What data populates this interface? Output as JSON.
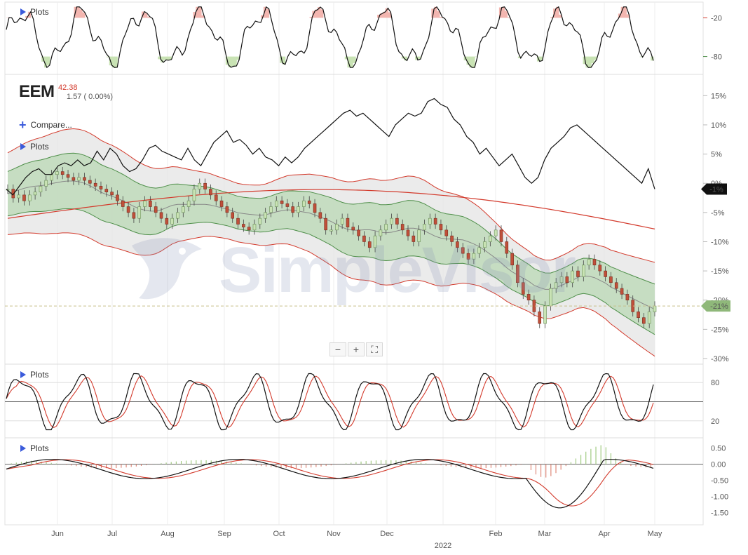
{
  "symbol": "EEM",
  "price": "42.38",
  "change": "1.57 ( 0.00%)",
  "compare_label": "Compare...",
  "plots_label": "Plots",
  "watermark": "SimpleVisor",
  "zoom": {
    "minus": "−",
    "plus": "+",
    "fit": "⛶"
  },
  "icons": {
    "plots": "triangle-right-icon",
    "compare": "plus-icon",
    "zoom_out": "minus-icon",
    "zoom_in": "plus-icon",
    "fit": "fit-screen-icon",
    "logo": "eagle-logo-icon"
  },
  "colors": {
    "up": "#c9e3b4",
    "down": "#c0503a",
    "band_fill": "#b7d7b0",
    "outer_fill": "#e6e6e6",
    "outer_line": "#d33a2c",
    "inner_line": "#4f8f4a",
    "ma200": "#d33a2c",
    "signal": "#d33a2c",
    "overbought": "#f3b6b0",
    "oversold": "#c9e3b4",
    "accent": "#3b5bdb"
  },
  "months": [
    "Jun",
    "Jul",
    "Aug",
    "Sep",
    "Oct",
    "Nov",
    "Dec",
    "2022",
    "Feb",
    "Mar",
    "Apr",
    "May"
  ],
  "chart_data": [
    {
      "panel": "top-oscillator",
      "type": "line",
      "y_ticks": [
        "-20",
        "-80"
      ],
      "ylim": [
        -100,
        0
      ],
      "overbought": -20,
      "oversold": -80
    },
    {
      "panel": "price",
      "type": "candlestick",
      "y_ticks": [
        "15%",
        "10%",
        "5%",
        "0%",
        "-5%",
        "-10%",
        "-15%",
        "-20%",
        "-25%",
        "-30%"
      ],
      "ylim": [
        -30,
        16
      ],
      "last_compare_label": "-1%",
      "last_price_label": "-21%",
      "compare_last": -1,
      "price_last": -21,
      "compare_series": [
        -1,
        -2,
        -0.5,
        1,
        2,
        2.5,
        1.5,
        1.5,
        3,
        3.5,
        3,
        4,
        3,
        3.5,
        5.5,
        4,
        6,
        5,
        3,
        2,
        2.5,
        4,
        6,
        6.5,
        5.5,
        5,
        4.5,
        4,
        6,
        4,
        3,
        5,
        7,
        8,
        9,
        7,
        7.5,
        6.5,
        5,
        6,
        4.5,
        4,
        3,
        4.5,
        3.5,
        4.5,
        6,
        7,
        8,
        9,
        10,
        11,
        12,
        12.5,
        11.5,
        12,
        11,
        10,
        9,
        8,
        10,
        11,
        12,
        11.5,
        12,
        14,
        14.5,
        13.5,
        13,
        11,
        10,
        8,
        7,
        5,
        6,
        4.5,
        3,
        4,
        5,
        3,
        1,
        0,
        1,
        4,
        6,
        7,
        8,
        9.5,
        10,
        9,
        8,
        7,
        6,
        5,
        4,
        3,
        2,
        1,
        0,
        2.5,
        -1
      ],
      "candles": [
        -1,
        -2.5,
        -2,
        -3,
        -2,
        -1.5,
        -0.5,
        0.5,
        1.5,
        2,
        1.5,
        1,
        0.5,
        1,
        0.5,
        0,
        -0.5,
        -1,
        -1.5,
        -2,
        -3,
        -4,
        -5,
        -6,
        -4,
        -3,
        -4,
        -5,
        -6,
        -7,
        -6,
        -5,
        -4,
        -3,
        -1,
        0,
        -1,
        -2,
        -3,
        -4,
        -5,
        -6,
        -7,
        -7.5,
        -8,
        -7,
        -6,
        -5,
        -4,
        -3,
        -3.5,
        -4,
        -5,
        -4,
        -3,
        -3.5,
        -5,
        -6,
        -8,
        -8,
        -7,
        -6,
        -7.5,
        -8,
        -9,
        -10,
        -11,
        -9,
        -8,
        -7,
        -6,
        -7,
        -8,
        -9,
        -10,
        -8,
        -7,
        -6,
        -7,
        -8,
        -9,
        -10,
        -11,
        -12,
        -13,
        -12,
        -11,
        -10,
        -9,
        -8,
        -10,
        -12,
        -14,
        -17,
        -19,
        -20,
        -22,
        -24,
        -21,
        -18,
        -17,
        -16,
        -17,
        -15,
        -16,
        -14,
        -13,
        -14,
        -15,
        -16,
        -17,
        -18,
        -19,
        -20,
        -22,
        -23,
        -24,
        -22,
        -21
      ]
    },
    {
      "panel": "stochastic",
      "type": "line",
      "y_ticks": [
        "80",
        "20"
      ],
      "ylim": [
        0,
        100
      ],
      "levels": [
        80,
        50,
        20
      ]
    },
    {
      "panel": "macd",
      "type": "line",
      "y_ticks": [
        "0.50",
        "0.00",
        "-0.50",
        "-1.00",
        "-1.50"
      ],
      "ylim": [
        -1.75,
        0.6
      ]
    }
  ]
}
